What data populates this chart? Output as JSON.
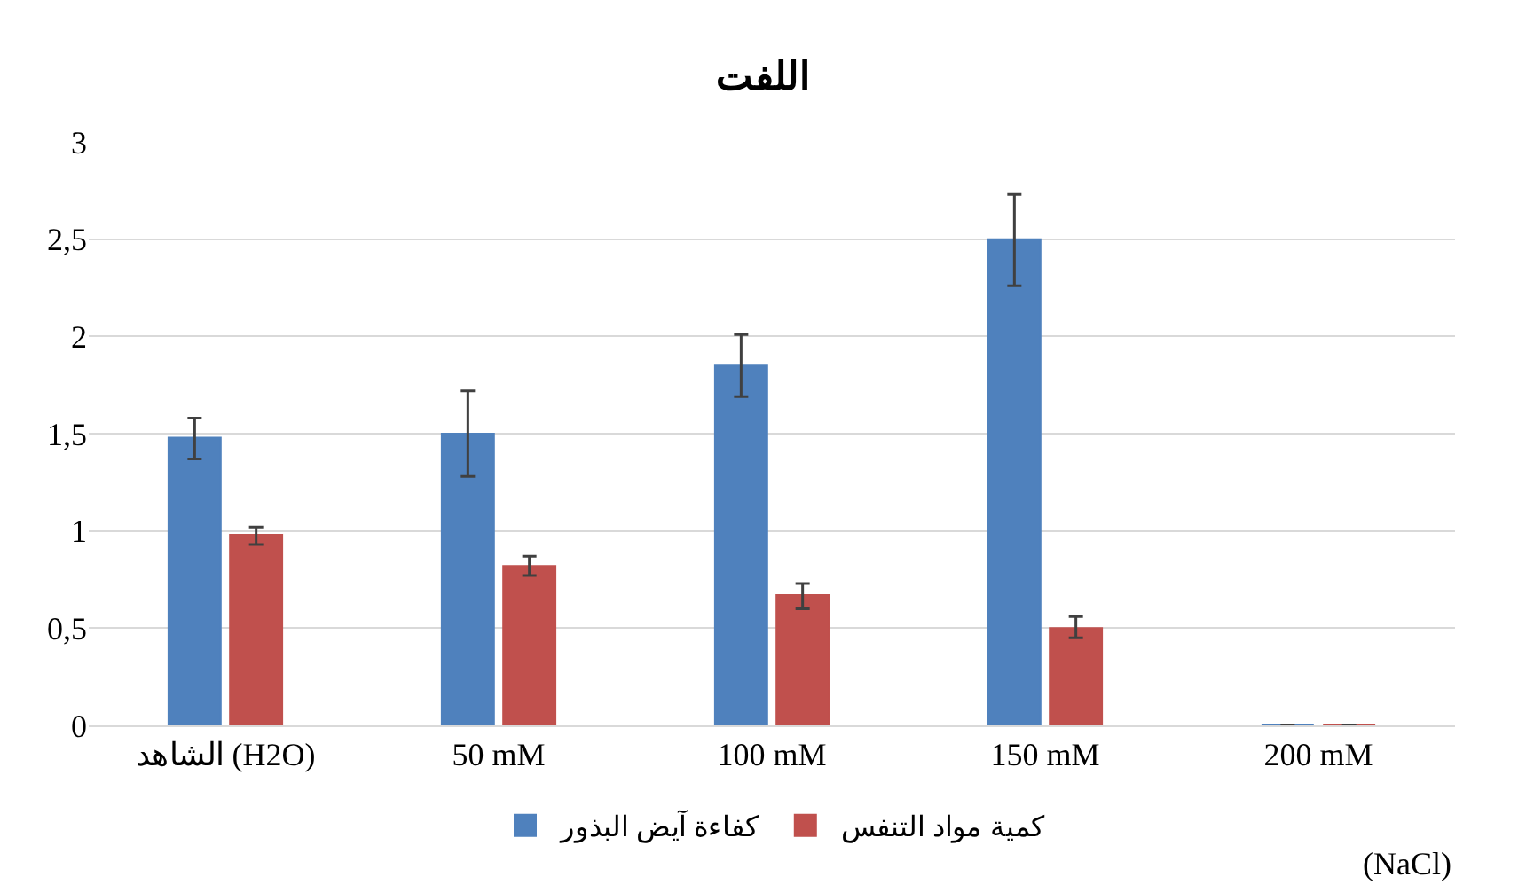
{
  "chart_data": {
    "type": "bar",
    "title": "اللفت",
    "categories": [
      "الشاهد (H2O)",
      "50 mM",
      "100 mM",
      "150 mM",
      "200 mM"
    ],
    "series": [
      {
        "name": "كفاءة آيض البذور",
        "color": "#4f81bd",
        "values": [
          1.48,
          1.5,
          1.85,
          2.5,
          0
        ],
        "errors": [
          [
            1.37,
            1.58
          ],
          [
            1.28,
            1.72
          ],
          [
            1.69,
            2.01
          ],
          [
            2.26,
            2.73
          ],
          null
        ]
      },
      {
        "name": "كمية مواد التنفس",
        "color": "#c0504d",
        "values": [
          0.98,
          0.82,
          0.67,
          0.5,
          0
        ],
        "errors": [
          [
            0.93,
            1.02
          ],
          [
            0.77,
            0.87
          ],
          [
            0.6,
            0.73
          ],
          [
            0.45,
            0.56
          ],
          null
        ]
      }
    ],
    "ylim": [
      0,
      3
    ],
    "yticks": [
      0,
      {
        "value": 0.5,
        "label": "0,5"
      },
      1,
      {
        "value": 1.5,
        "label": "1,5"
      },
      2,
      {
        "value": 2.5,
        "label": "2,5"
      },
      3
    ],
    "grid": "y",
    "legend": "bottom",
    "annotations": [
      "(NaCl)"
    ]
  }
}
